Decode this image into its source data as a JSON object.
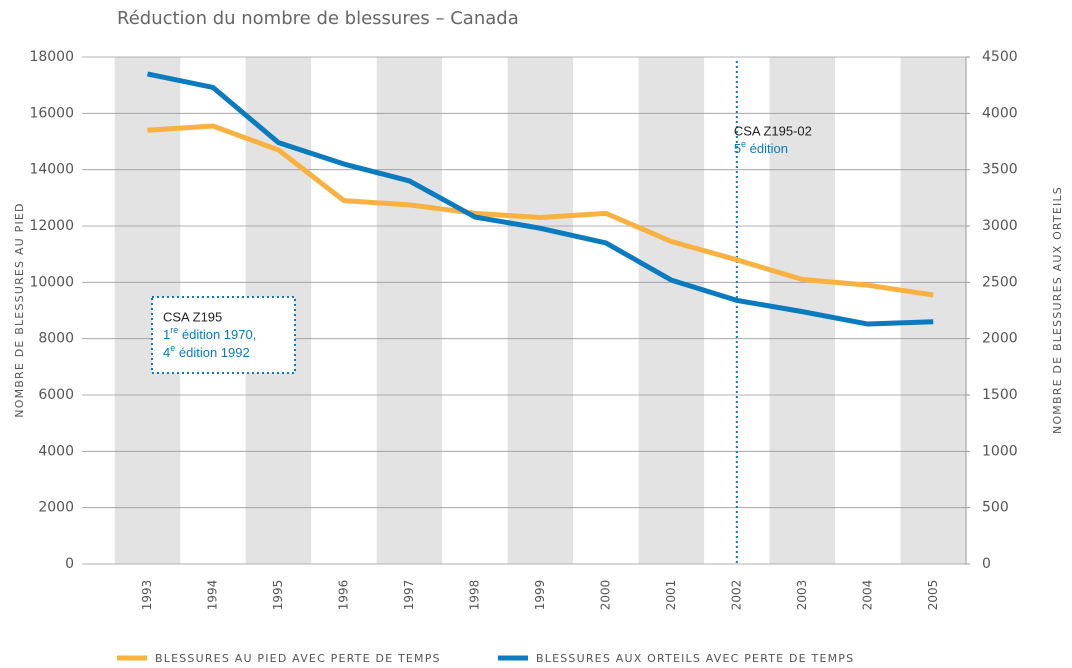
{
  "chart_data": {
    "type": "line",
    "title": "Réduction du nombre de blessures – Canada",
    "ylabel": "NOMBRE DE BLESSURES AU PIED",
    "y2label": "NOMBRE DE BLESSURES AUX ORTEILS",
    "categories": [
      "1993",
      "1994",
      "1995",
      "1996",
      "1997",
      "1998",
      "1999",
      "2000",
      "2001",
      "2002",
      "2003",
      "2004",
      "2005"
    ],
    "series": [
      {
        "name": "BLESSURES AU PIED AVEC PERTE DE TEMPS",
        "color": "#f9b13f",
        "axis": "y",
        "values": [
          15400,
          15550,
          14700,
          12900,
          12750,
          12450,
          12300,
          12450,
          11450,
          10800,
          10100,
          9900,
          9550
        ]
      },
      {
        "name": "BLESSURES AUX ORTEILS AVEC PERTE DE TEMPS",
        "color": "#0a7bbf",
        "axis": "y2",
        "values": [
          4350,
          4230,
          3740,
          3550,
          3400,
          3080,
          2980,
          2850,
          2520,
          2340,
          2240,
          2130,
          2150
        ]
      }
    ],
    "ylim": [
      0,
      18000
    ],
    "yticks": [
      0,
      2000,
      4000,
      6000,
      8000,
      10000,
      12000,
      14000,
      16000,
      18000
    ],
    "y2lim": [
      0,
      4500
    ],
    "y2ticks": [
      0,
      500,
      1000,
      1500,
      2000,
      2500,
      3000,
      3500,
      4000,
      4500
    ],
    "grid": true,
    "annotations": [
      {
        "title": "CSA Z195-02",
        "lines": [
          [
            "5",
            "e",
            " édition"
          ]
        ]
      },
      {
        "title": "CSA Z195",
        "lines": [
          [
            "1",
            "re",
            " édition 1970,"
          ],
          [
            "4",
            "e",
            " édition 1992"
          ]
        ]
      }
    ]
  }
}
